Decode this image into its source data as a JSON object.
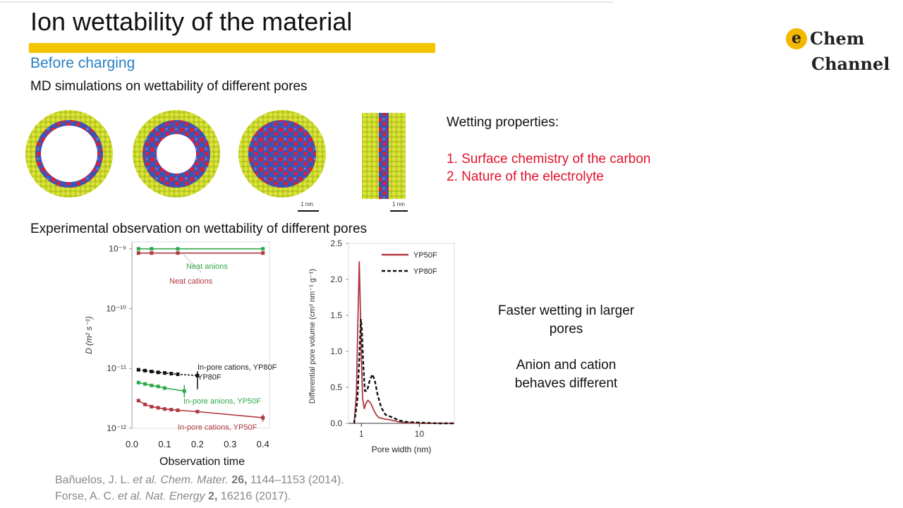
{
  "slide": {
    "title": "Ion wettability of the material",
    "subtitle": "Before charging",
    "md_line": "MD simulations on wettability of different pores",
    "exp_line": "Experimental observation on wettability of different pores",
    "wetting": {
      "heading": "Wetting properties:",
      "items": [
        "1. Surface chemistry of the carbon",
        "2. Nature of the electrolyte"
      ]
    },
    "notes": [
      "Faster wetting in larger pores",
      "Anion and cation behaves different"
    ],
    "scale_bar_label": "1 nm",
    "references": [
      {
        "authors": "Bañuelos, J. L. ",
        "etal": "et al.",
        "journal": " Chem. Mater.",
        "volume": "26,",
        "rest": " 1144–1153 (2014)."
      },
      {
        "authors": "Forse, A. C. ",
        "etal": "et al.",
        "journal": " Nat. Energy",
        "volume": "2,",
        "rest": " 16216 (2017)."
      }
    ]
  },
  "logo": {
    "badge": "e",
    "line1": "Chem",
    "line2": "Channel"
  },
  "colors": {
    "accent_bar": "#f5c400",
    "subtitle": "#2a7fc0",
    "red": "#e0112c",
    "green": "#2ea84a",
    "maroon": "#b0383e",
    "yellow_atoms": "#c8d62a",
    "blue_ions": "#3a55b8",
    "red_ions": "#d8203c"
  },
  "chart_data": [
    {
      "type": "line",
      "title": "",
      "xlabel": "Observation time",
      "ylabel": "D (m² s⁻¹)",
      "xlim": [
        0.0,
        0.42
      ],
      "ylim": [
        1e-12,
        1.3e-09
      ],
      "yscale": "log",
      "x_ticks": [
        "0.0",
        "0.1",
        "0.2",
        "0.3",
        "0.4"
      ],
      "y_ticks": [
        "10⁻⁹",
        "10⁻¹⁰",
        "10⁻¹¹",
        "10⁻¹²"
      ],
      "series": [
        {
          "name": "Neat anions",
          "color": "#2ea84a",
          "x": [
            0.02,
            0.06,
            0.14,
            0.4
          ],
          "y": [
            1e-09,
            1e-09,
            1e-09,
            1e-09
          ]
        },
        {
          "name": "Neat cations",
          "color": "#b0383e",
          "x": [
            0.02,
            0.06,
            0.14,
            0.4
          ],
          "y": [
            8.5e-10,
            8.5e-10,
            8.5e-10,
            8.5e-10
          ]
        },
        {
          "name": "In-pore cations, YP80F",
          "color": "#111111",
          "x": [
            0.02,
            0.04,
            0.06,
            0.08,
            0.1,
            0.12,
            0.14,
            0.2
          ],
          "y": [
            9.5e-12,
            9.2e-12,
            8.9e-12,
            8.6e-12,
            8.4e-12,
            8.2e-12,
            8e-12,
            7.6e-12
          ]
        },
        {
          "name": "In-pore anions, YP50F",
          "color": "#2ea84a",
          "x": [
            0.02,
            0.04,
            0.06,
            0.08,
            0.1,
            0.16
          ],
          "y": [
            5.8e-12,
            5.5e-12,
            5.2e-12,
            5e-12,
            4.7e-12,
            4.2e-12
          ]
        },
        {
          "name": "In-pore cations, YP50F",
          "color": "#b0383e",
          "x": [
            0.02,
            0.04,
            0.06,
            0.08,
            0.1,
            0.12,
            0.14,
            0.2,
            0.4
          ],
          "y": [
            2.9e-12,
            2.5e-12,
            2.3e-12,
            2.2e-12,
            2.1e-12,
            2.05e-12,
            2e-12,
            1.9e-12,
            1.5e-12
          ]
        }
      ],
      "annotations": [
        "Neat anions",
        "Neat cations",
        "In-pore cations, YP80F",
        "In-pore anions, YP50F",
        "In-pore cations, YP50F"
      ]
    },
    {
      "type": "line",
      "title": "",
      "xlabel": "Pore width (nm)",
      "ylabel": "Differential pore volume (cm³ nm⁻¹ g⁻¹)",
      "xscale": "log",
      "xlim": [
        0.6,
        40
      ],
      "ylim": [
        0.0,
        2.5
      ],
      "x_ticks": [
        "1",
        "10"
      ],
      "y_ticks": [
        "0.0",
        "0.5",
        "1.0",
        "1.5",
        "2.0",
        "2.5"
      ],
      "legend": "top-right",
      "series": [
        {
          "name": "YP50F",
          "color": "#b0383e",
          "dash": "solid",
          "x": [
            0.75,
            0.82,
            0.87,
            0.92,
            0.96,
            1.0,
            1.05,
            1.12,
            1.2,
            1.3,
            1.45,
            1.6,
            1.8,
            2.0,
            2.5,
            3.0,
            3.5,
            4.5,
            6,
            10,
            20,
            40
          ],
          "y": [
            0.0,
            0.4,
            1.4,
            2.25,
            1.6,
            0.9,
            0.35,
            0.2,
            0.28,
            0.32,
            0.28,
            0.2,
            0.12,
            0.08,
            0.06,
            0.05,
            0.04,
            0.02,
            0.01,
            0.0,
            0.0,
            0.0
          ]
        },
        {
          "name": "YP80F",
          "color": "#111111",
          "dash": "dashed",
          "x": [
            0.75,
            0.85,
            0.92,
            0.98,
            1.02,
            1.08,
            1.15,
            1.25,
            1.4,
            1.55,
            1.7,
            1.9,
            2.2,
            2.6,
            3.0,
            3.5,
            4.5,
            6,
            10,
            20,
            40
          ],
          "y": [
            0.0,
            0.3,
            0.9,
            1.45,
            1.3,
            0.8,
            0.45,
            0.45,
            0.6,
            0.68,
            0.6,
            0.4,
            0.22,
            0.12,
            0.1,
            0.08,
            0.04,
            0.02,
            0.01,
            0.0,
            0.0
          ]
        }
      ]
    }
  ]
}
